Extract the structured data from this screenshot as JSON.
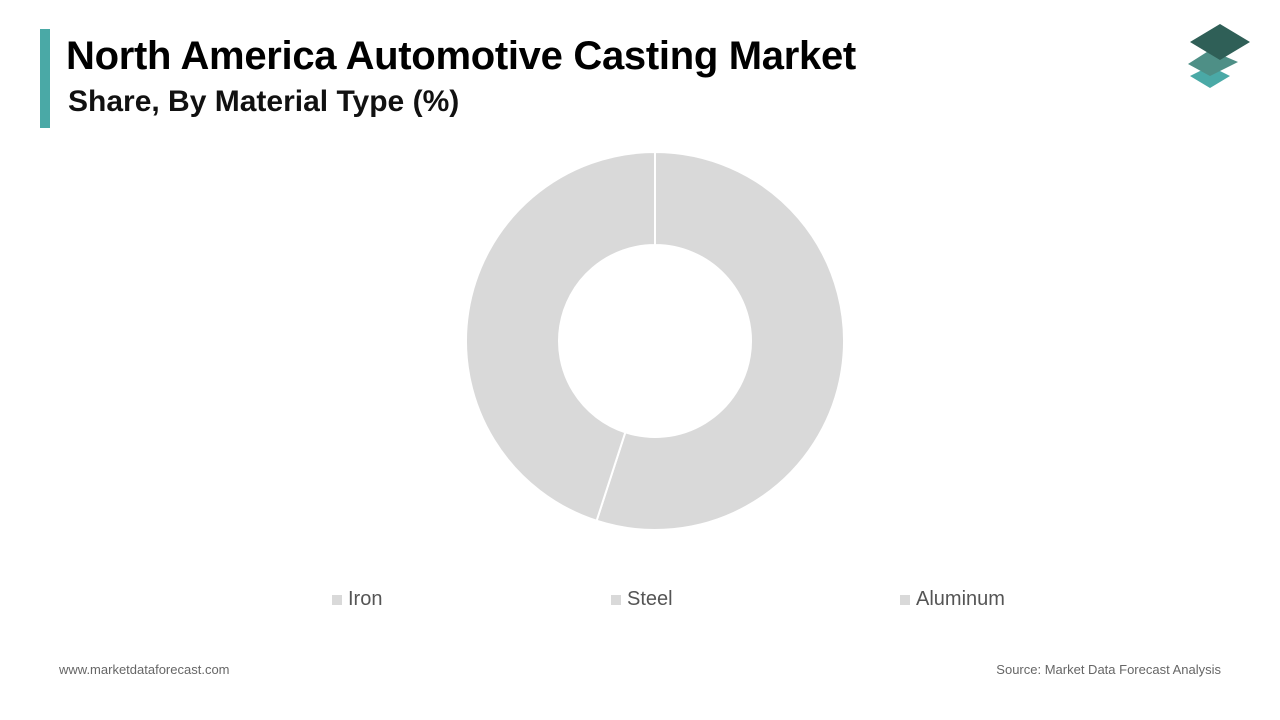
{
  "header": {
    "title": "North America Automotive Casting Market",
    "subtitle": "Share, By Material Type (%)"
  },
  "colors": {
    "accent": "#4aa9a6",
    "slice": "#d9d9d9",
    "logo_dark": "#2f5f57",
    "logo_mid": "#4e8f86",
    "logo_light": "#4aa9a6"
  },
  "chart_data": {
    "type": "pie",
    "variant": "donut",
    "categories": [
      "Iron",
      "Steel",
      "Aluminum"
    ],
    "values": [
      55,
      45,
      0
    ],
    "legend_position": "bottom"
  },
  "legend": {
    "items": [
      {
        "label": "Iron"
      },
      {
        "label": "Steel"
      },
      {
        "label": "Aluminum"
      }
    ]
  },
  "footer": {
    "website": "www.marketdataforecast.com",
    "source": "Source: Market Data Forecast Analysis"
  },
  "logo": {
    "icon": "layers-icon"
  }
}
